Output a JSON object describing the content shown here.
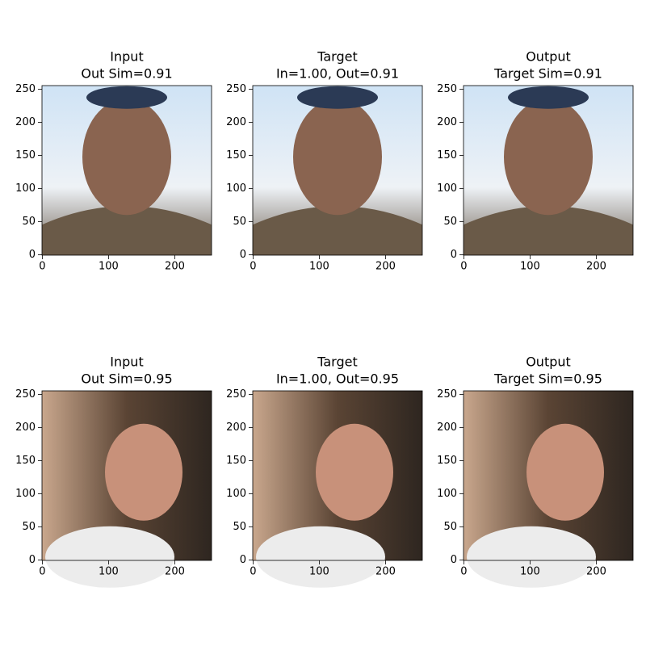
{
  "chart_data": [
    {
      "type": "image",
      "title": [
        "Input",
        "Out Sim=0.91"
      ],
      "xlim": [
        -0.5,
        255.5
      ],
      "ylim": [
        255.5,
        -0.5
      ],
      "xticks": [
        0,
        100,
        200
      ],
      "yticks": [
        0,
        50,
        100,
        150,
        200,
        250
      ]
    },
    {
      "type": "image",
      "title": [
        "Target",
        "In=1.00, Out=0.91"
      ],
      "xlim": [
        -0.5,
        255.5
      ],
      "ylim": [
        255.5,
        -0.5
      ],
      "xticks": [
        0,
        100,
        200
      ],
      "yticks": [
        0,
        50,
        100,
        150,
        200,
        250
      ]
    },
    {
      "type": "image",
      "title": [
        "Output",
        "Target Sim=0.91"
      ],
      "xlim": [
        -0.5,
        255.5
      ],
      "ylim": [
        255.5,
        -0.5
      ],
      "xticks": [
        0,
        100,
        200
      ],
      "yticks": [
        0,
        50,
        100,
        150,
        200,
        250
      ]
    },
    {
      "type": "image",
      "title": [
        "Input",
        "Out Sim=0.95"
      ],
      "xlim": [
        -0.5,
        255.5
      ],
      "ylim": [
        255.5,
        -0.5
      ],
      "xticks": [
        0,
        100,
        200
      ],
      "yticks": [
        0,
        50,
        100,
        150,
        200,
        250
      ]
    },
    {
      "type": "image",
      "title": [
        "Target",
        "In=1.00, Out=0.95"
      ],
      "xlim": [
        -0.5,
        255.5
      ],
      "ylim": [
        255.5,
        -0.5
      ],
      "xticks": [
        0,
        100,
        200
      ],
      "yticks": [
        0,
        50,
        100,
        150,
        200,
        250
      ]
    },
    {
      "type": "image",
      "title": [
        "Output",
        "Target Sim=0.95"
      ],
      "xlim": [
        -0.5,
        255.5
      ],
      "ylim": [
        255.5,
        -0.5
      ],
      "xticks": [
        0,
        100,
        200
      ],
      "yticks": [
        0,
        50,
        100,
        150,
        200,
        250
      ]
    }
  ]
}
